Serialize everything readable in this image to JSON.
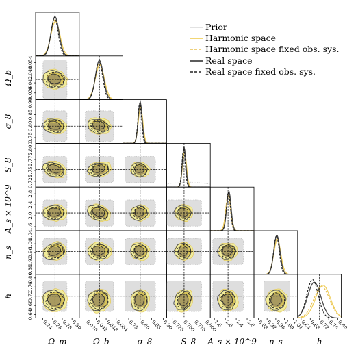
{
  "chart_data": {
    "type": "corner",
    "parameters": [
      {
        "key": "omega_m",
        "label": "Ω_m",
        "ticks": [
          "0.24",
          "0.26",
          "0.28",
          "0.30"
        ],
        "range": [
          0.225,
          0.315
        ],
        "truth": 0.265
      },
      {
        "key": "omega_b",
        "label": "Ω_b",
        "ticks": [
          "0.036",
          "0.042",
          "0.048",
          "0.054"
        ],
        "range": [
          0.032,
          0.058
        ],
        "truth": 0.044
      },
      {
        "key": "sigma_8",
        "label": "σ_8",
        "ticks": [
          "0.75",
          "0.80",
          "0.85",
          "0.90"
        ],
        "range": [
          0.725,
          0.915
        ],
        "truth": 0.8
      },
      {
        "key": "S_8",
        "label": "S_8",
        "ticks": [
          "0.725",
          "0.750",
          "0.775",
          "0.800"
        ],
        "range": [
          0.712,
          0.812
        ],
        "truth": 0.752
      },
      {
        "key": "A_s",
        "label": "A_s × 10^9",
        "ticks": [
          "1.6",
          "2.0",
          "2.4",
          "2.8"
        ],
        "range": [
          1.45,
          3.05
        ],
        "truth": 2.1
      },
      {
        "key": "n_s",
        "label": "n_s",
        "ticks": [
          "0.88",
          "0.92",
          "0.96",
          "1.00",
          "1.04"
        ],
        "range": [
          0.86,
          1.06
        ],
        "truth": 0.965
      },
      {
        "key": "h",
        "label": "h",
        "ticks": [
          "0.64",
          "0.68",
          "0.72",
          "0.76",
          "0.80"
        ],
        "range": [
          0.625,
          0.815
        ],
        "truth": 0.72
      }
    ],
    "series": [
      {
        "name": "Prior",
        "color": "#d9d9d9",
        "style": "dotted",
        "fill": "#dedede"
      },
      {
        "name": "Harmonic space",
        "color": "#f0d060",
        "style": "solid",
        "fill": "#ece37a"
      },
      {
        "name": "Harmonic space fixed obs. sys.",
        "color": "#e8c050",
        "style": "dashed",
        "fill": "#c9a94a"
      },
      {
        "name": "Real space",
        "color": "#444444",
        "style": "solid",
        "fill": "none"
      },
      {
        "name": "Real space fixed obs. sys.",
        "color": "#222222",
        "style": "dashed",
        "fill": "none"
      }
    ],
    "legend": "top-right"
  }
}
